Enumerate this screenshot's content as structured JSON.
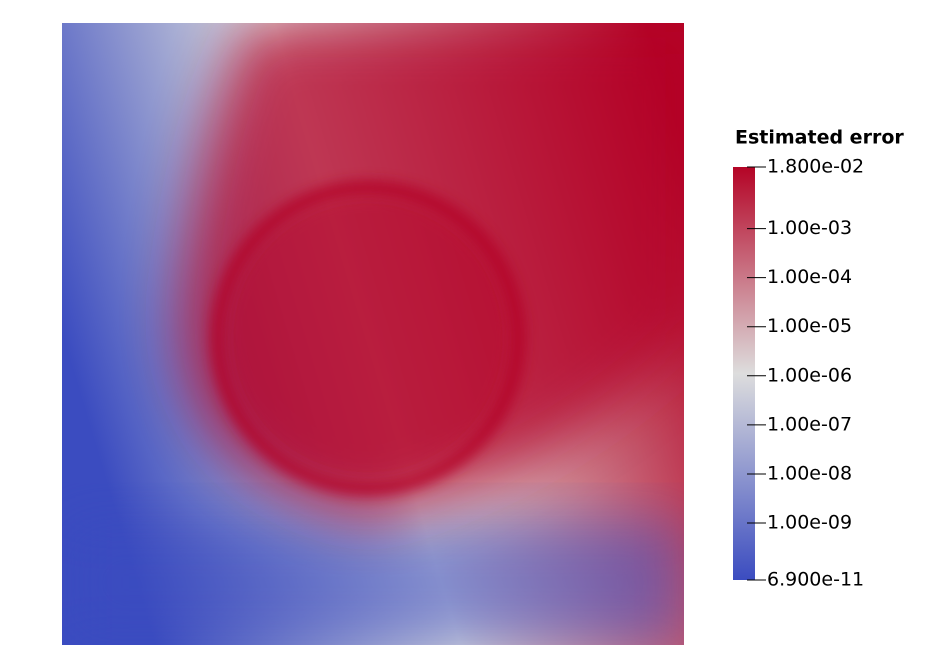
{
  "chart_data": {
    "type": "colorbar",
    "title": "Estimated error",
    "log_scale": true,
    "colors": [
      "#3b4cc0",
      "#dddddd",
      "#b40426"
    ],
    "ylim": [
      6.9e-11,
      0.018
    ],
    "yticks": [
      {
        "value": 0.018,
        "label": "1.800e-02"
      },
      {
        "value": 0.001,
        "label": "1.00e-03"
      },
      {
        "value": 0.0001,
        "label": "1.00e-04"
      },
      {
        "value": 1e-05,
        "label": "1.00e-05"
      },
      {
        "value": 1e-06,
        "label": "1.00e-06"
      },
      {
        "value": 1e-07,
        "label": "1.00e-07"
      },
      {
        "value": 1e-08,
        "label": "1.00e-08"
      },
      {
        "value": 1e-09,
        "label": "1.00e-09"
      },
      {
        "value": 6.9e-11,
        "label": "6.900e-11"
      }
    ]
  }
}
